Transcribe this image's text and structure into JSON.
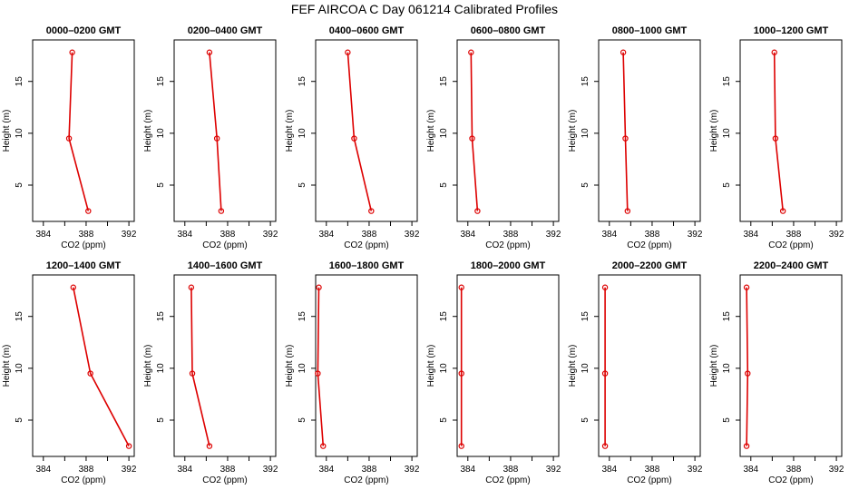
{
  "title": "FEF AIRCOA C  Day 061214  Calibrated Profiles",
  "colors": {
    "series": "#dd0000",
    "axes": "#000000",
    "background": "#ffffff"
  },
  "chart_data": [
    {
      "type": "line",
      "title": "0000–0200 GMT",
      "xlabel": "CO2 (ppm)",
      "ylabel": "Height (m)",
      "xlim": [
        383,
        392.5
      ],
      "ylim": [
        1.5,
        19
      ],
      "xticks": [
        384,
        388,
        392
      ],
      "yticks": [
        5,
        10,
        15
      ],
      "series": [
        {
          "x": [
            388.2,
            386.4,
            386.7
          ],
          "y": [
            2.5,
            9.5,
            17.8
          ]
        }
      ]
    },
    {
      "type": "line",
      "title": "0200–0400 GMT",
      "xlabel": "CO2 (ppm)",
      "ylabel": "Height (m)",
      "xlim": [
        383,
        392.5
      ],
      "ylim": [
        1.5,
        19
      ],
      "xticks": [
        384,
        388,
        392
      ],
      "yticks": [
        5,
        10,
        15
      ],
      "series": [
        {
          "x": [
            387.4,
            387.0,
            386.3
          ],
          "y": [
            2.5,
            9.5,
            17.8
          ]
        }
      ]
    },
    {
      "type": "line",
      "title": "0400–0600 GMT",
      "xlabel": "CO2 (ppm)",
      "ylabel": "Height (m)",
      "xlim": [
        383,
        392.5
      ],
      "ylim": [
        1.5,
        19
      ],
      "xticks": [
        384,
        388,
        392
      ],
      "yticks": [
        5,
        10,
        15
      ],
      "series": [
        {
          "x": [
            388.2,
            386.6,
            386.0
          ],
          "y": [
            2.5,
            9.5,
            17.8
          ]
        }
      ]
    },
    {
      "type": "line",
      "title": "0600–0800 GMT",
      "xlabel": "CO2 (ppm)",
      "ylabel": "Height (m)",
      "xlim": [
        383,
        392.5
      ],
      "ylim": [
        1.5,
        19
      ],
      "xticks": [
        384,
        388,
        392
      ],
      "yticks": [
        5,
        10,
        15
      ],
      "series": [
        {
          "x": [
            384.9,
            384.4,
            384.3
          ],
          "y": [
            2.5,
            9.5,
            17.8
          ]
        }
      ]
    },
    {
      "type": "line",
      "title": "0800–1000 GMT",
      "xlabel": "CO2 (ppm)",
      "ylabel": "Height (m)",
      "xlim": [
        383,
        392.5
      ],
      "ylim": [
        1.5,
        19
      ],
      "xticks": [
        384,
        388,
        392
      ],
      "yticks": [
        5,
        10,
        15
      ],
      "series": [
        {
          "x": [
            385.7,
            385.5,
            385.3
          ],
          "y": [
            2.5,
            9.5,
            17.8
          ]
        }
      ]
    },
    {
      "type": "line",
      "title": "1000–1200 GMT",
      "xlabel": "CO2 (ppm)",
      "ylabel": "Height (m)",
      "xlim": [
        383,
        392.5
      ],
      "ylim": [
        1.5,
        19
      ],
      "xticks": [
        384,
        388,
        392
      ],
      "yticks": [
        5,
        10,
        15
      ],
      "series": [
        {
          "x": [
            387.0,
            386.3,
            386.2
          ],
          "y": [
            2.5,
            9.5,
            17.8
          ]
        }
      ]
    },
    {
      "type": "line",
      "title": "1200–1400 GMT",
      "xlabel": "CO2 (ppm)",
      "ylabel": "Height (m)",
      "xlim": [
        383,
        392.5
      ],
      "ylim": [
        1.5,
        19
      ],
      "xticks": [
        384,
        388,
        392
      ],
      "yticks": [
        5,
        10,
        15
      ],
      "series": [
        {
          "x": [
            392.0,
            388.4,
            386.8
          ],
          "y": [
            2.5,
            9.5,
            17.8
          ]
        }
      ]
    },
    {
      "type": "line",
      "title": "1400–1600 GMT",
      "xlabel": "CO2 (ppm)",
      "ylabel": "Height (m)",
      "xlim": [
        383,
        392.5
      ],
      "ylim": [
        1.5,
        19
      ],
      "xticks": [
        384,
        388,
        392
      ],
      "yticks": [
        5,
        10,
        15
      ],
      "series": [
        {
          "x": [
            386.3,
            384.7,
            384.6
          ],
          "y": [
            2.5,
            9.5,
            17.8
          ]
        }
      ]
    },
    {
      "type": "line",
      "title": "1600–1800 GMT",
      "xlabel": "CO2 (ppm)",
      "ylabel": "Height (m)",
      "xlim": [
        383,
        392.5
      ],
      "ylim": [
        1.5,
        19
      ],
      "xticks": [
        384,
        388,
        392
      ],
      "yticks": [
        5,
        10,
        15
      ],
      "series": [
        {
          "x": [
            383.7,
            383.2,
            383.3
          ],
          "y": [
            2.5,
            9.5,
            17.8
          ]
        }
      ]
    },
    {
      "type": "line",
      "title": "1800–2000 GMT",
      "xlabel": "CO2 (ppm)",
      "ylabel": "Height (m)",
      "xlim": [
        383,
        392.5
      ],
      "ylim": [
        1.5,
        19
      ],
      "xticks": [
        384,
        388,
        392
      ],
      "yticks": [
        5,
        10,
        15
      ],
      "series": [
        {
          "x": [
            383.4,
            383.4,
            383.4
          ],
          "y": [
            2.5,
            9.5,
            17.8
          ]
        }
      ]
    },
    {
      "type": "line",
      "title": "2000–2200 GMT",
      "xlabel": "CO2 (ppm)",
      "ylabel": "Height (m)",
      "xlim": [
        383,
        392.5
      ],
      "ylim": [
        1.5,
        19
      ],
      "xticks": [
        384,
        388,
        392
      ],
      "yticks": [
        5,
        10,
        15
      ],
      "series": [
        {
          "x": [
            383.6,
            383.6,
            383.6
          ],
          "y": [
            2.5,
            9.5,
            17.8
          ]
        }
      ]
    },
    {
      "type": "line",
      "title": "2200–2400 GMT",
      "xlabel": "CO2 (ppm)",
      "ylabel": "Height (m)",
      "xlim": [
        383,
        392.5
      ],
      "ylim": [
        1.5,
        19
      ],
      "xticks": [
        384,
        388,
        392
      ],
      "yticks": [
        5,
        10,
        15
      ],
      "series": [
        {
          "x": [
            383.6,
            383.7,
            383.6
          ],
          "y": [
            2.5,
            9.5,
            17.8
          ]
        }
      ]
    }
  ]
}
